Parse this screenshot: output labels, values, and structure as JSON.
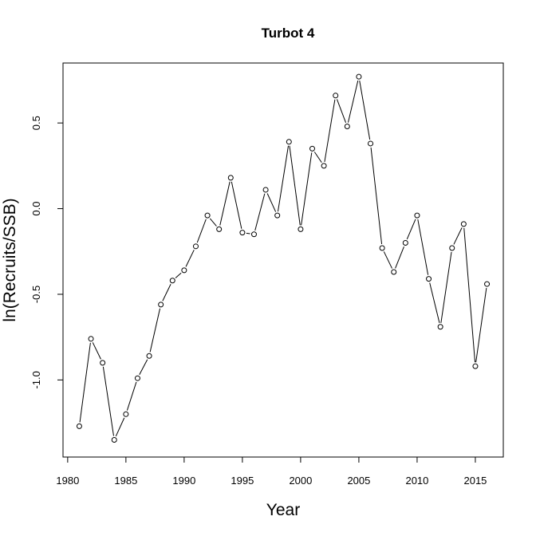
{
  "chart_data": {
    "type": "line",
    "title": "Turbot 4",
    "xlabel": "Year",
    "ylabel": "ln(Recruits/SSB)",
    "xlim": [
      1979.6,
      2017.4
    ],
    "ylim": [
      -1.45,
      0.85
    ],
    "xticks": [
      1980,
      1985,
      1990,
      1995,
      2000,
      2005,
      2010,
      2015
    ],
    "yticks": [
      -1.0,
      -0.5,
      0.0,
      0.5
    ],
    "ytick_labels": [
      "-1.0",
      "-0.5",
      "0.0",
      "0.5"
    ],
    "grid": false,
    "markers": "open-circle",
    "series": [
      {
        "x": [
          1981,
          1982,
          1983,
          1984,
          1985,
          1986,
          1987,
          1988,
          1989,
          1990,
          1991,
          1992,
          1993,
          1994,
          1995,
          1996,
          1997,
          1998,
          1999,
          2000,
          2001,
          2002,
          2003,
          2004,
          2005,
          2006,
          2007,
          2008,
          2009,
          2010,
          2011,
          2012,
          2013,
          2014,
          2015,
          2016
        ],
        "values": [
          -1.27,
          -0.76,
          -0.9,
          -1.35,
          -1.2,
          -0.99,
          -0.86,
          -0.56,
          -0.42,
          -0.36,
          -0.22,
          -0.04,
          -0.12,
          0.18,
          -0.14,
          -0.15,
          0.11,
          -0.04,
          0.39,
          -0.12,
          0.35,
          0.25,
          0.66,
          0.48,
          0.77,
          0.38,
          -0.23,
          -0.37,
          -0.2,
          -0.04,
          -0.41,
          -0.69,
          -0.23,
          -0.09,
          -0.92,
          -0.44
        ]
      }
    ]
  }
}
